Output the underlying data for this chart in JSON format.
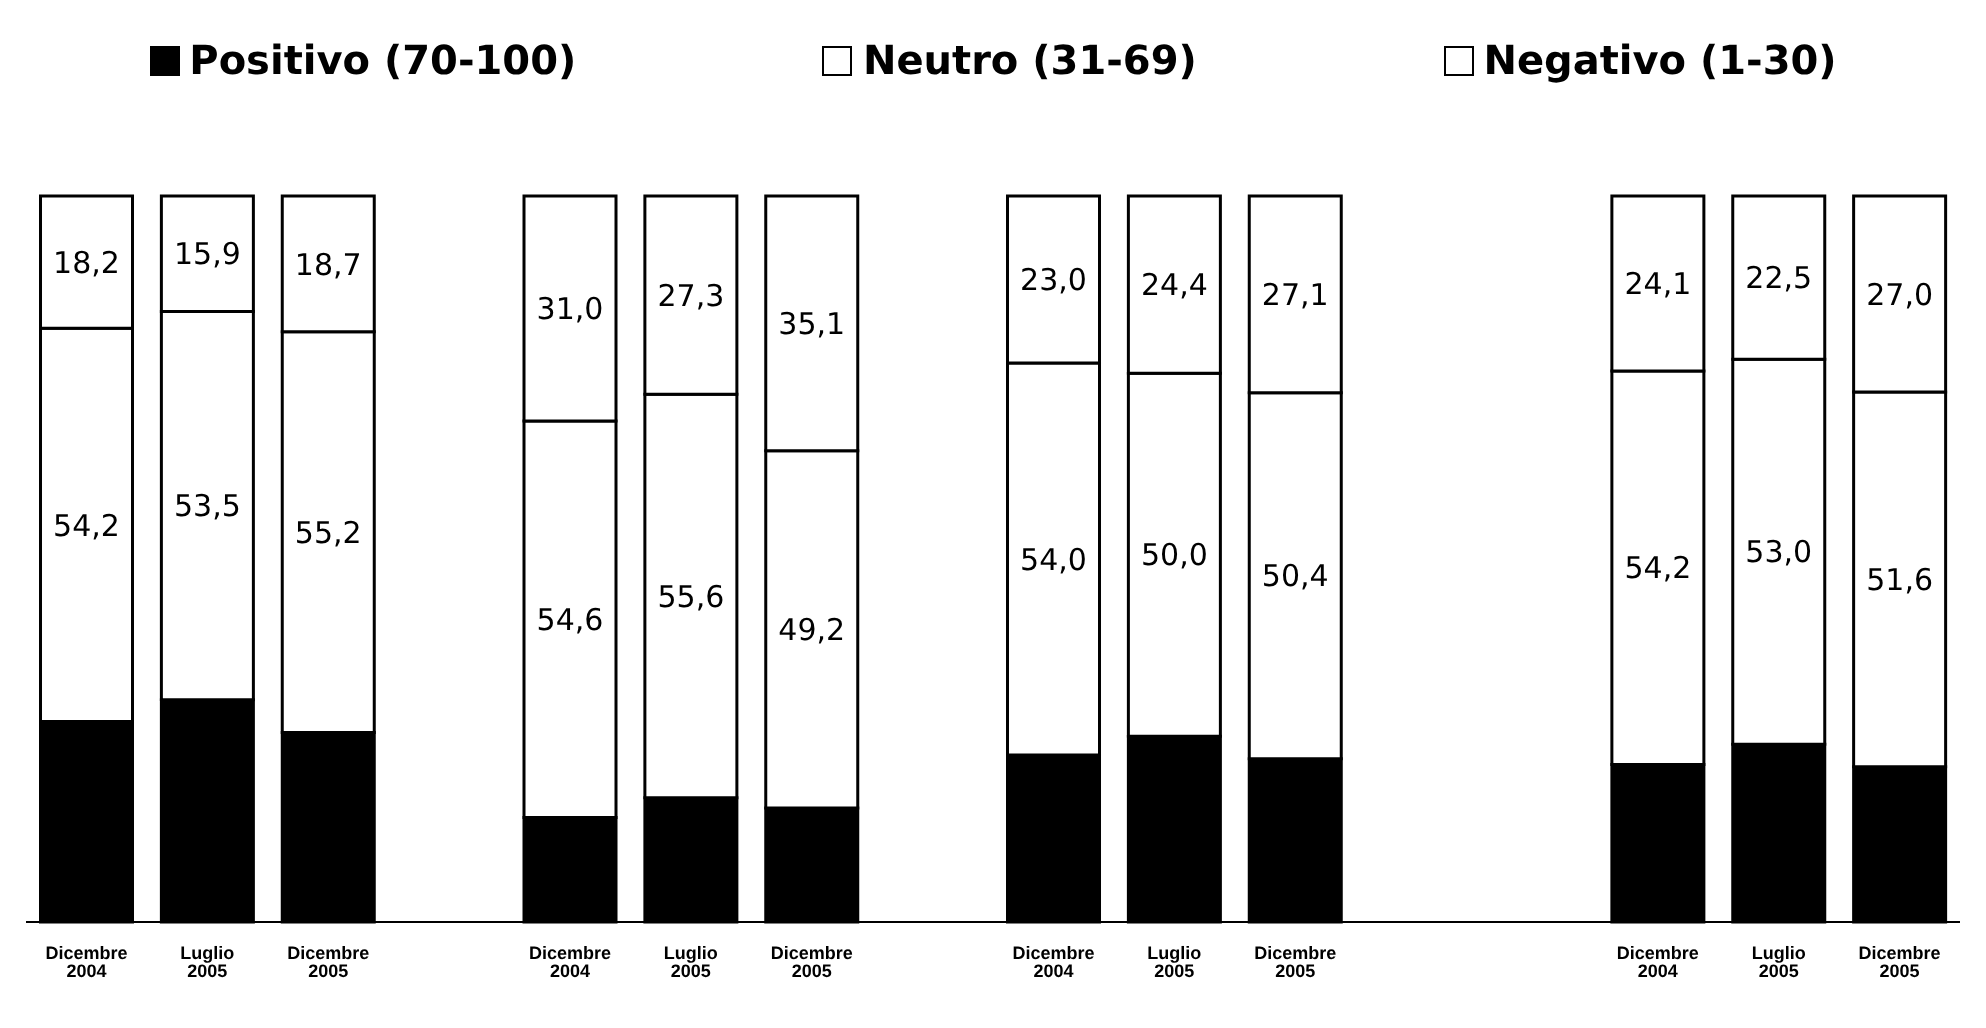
{
  "chart_data": {
    "type": "bar",
    "stacked": true,
    "legend": "top",
    "categories": [
      "Dicembre 2004",
      "Luglio 2005",
      "Dicembre 2005",
      null,
      "Dicembre 2004",
      "Luglio 2005",
      "Dicembre 2005",
      null,
      "Dicembre 2004",
      "Luglio 2005",
      "Dicembre 2005",
      null,
      null,
      "Dicembre 2004",
      "Luglio 2005",
      "Dicembre 2005"
    ],
    "series": [
      {
        "name": "Positivo (70-100)",
        "color": "#000000",
        "values": [
          27.6,
          30.6,
          26.1,
          null,
          14.4,
          17.1,
          15.7,
          null,
          23.0,
          25.6,
          22.5,
          null,
          null,
          21.7,
          24.5,
          21.4
        ]
      },
      {
        "name": "Neutro (31-69)",
        "color": "#ffffff",
        "values": [
          54.2,
          53.5,
          55.2,
          null,
          54.6,
          55.6,
          49.2,
          null,
          54.0,
          50.0,
          50.4,
          null,
          null,
          54.2,
          53.0,
          51.6
        ],
        "value_labels": [
          "54,2",
          "53,5",
          "55,2",
          null,
          "54,6",
          "55,6",
          "49,2",
          null,
          "54,0",
          "50,0",
          "50,4",
          null,
          null,
          "54,2",
          "53,0",
          "51,6"
        ]
      },
      {
        "name": "Negativo (1-30)",
        "color": "#ffffff",
        "values": [
          18.2,
          15.9,
          18.7,
          null,
          31.0,
          27.3,
          35.1,
          null,
          23.0,
          24.4,
          27.1,
          null,
          null,
          24.1,
          22.5,
          27.0
        ],
        "value_labels": [
          "18,2",
          "15,9",
          "18,7",
          null,
          "31,0",
          "27,3",
          "35,1",
          null,
          "23,0",
          "24,4",
          "27,1",
          null,
          null,
          "24,1",
          "22,5",
          "27,0"
        ]
      }
    ]
  }
}
